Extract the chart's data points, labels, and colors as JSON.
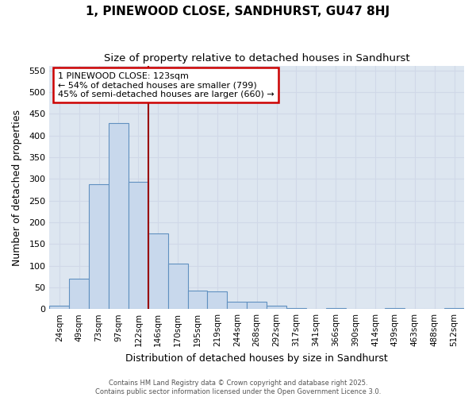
{
  "title": "1, PINEWOOD CLOSE, SANDHURST, GU47 8HJ",
  "subtitle": "Size of property relative to detached houses in Sandhurst",
  "xlabel": "Distribution of detached houses by size in Sandhurst",
  "ylabel": "Number of detached properties",
  "categories": [
    "24sqm",
    "49sqm",
    "73sqm",
    "97sqm",
    "122sqm",
    "146sqm",
    "170sqm",
    "195sqm",
    "219sqm",
    "244sqm",
    "268sqm",
    "292sqm",
    "317sqm",
    "341sqm",
    "366sqm",
    "390sqm",
    "414sqm",
    "439sqm",
    "463sqm",
    "488sqm",
    "512sqm"
  ],
  "bar_values": [
    7,
    70,
    288,
    428,
    293,
    175,
    105,
    43,
    40,
    17,
    17,
    7,
    3,
    0,
    3,
    0,
    0,
    2,
    0,
    0,
    2
  ],
  "bar_color": "#c8d8ec",
  "bar_edge_color": "#6090c0",
  "grid_color": "#d0d8e8",
  "bg_color": "#dde6f0",
  "fig_bg_color": "#ffffff",
  "vline_color": "#990000",
  "annotation_text": "1 PINEWOOD CLOSE: 123sqm\n← 54% of detached houses are smaller (799)\n45% of semi-detached houses are larger (660) →",
  "annotation_box_color": "#cc0000",
  "ylim": [
    0,
    560
  ],
  "yticks": [
    0,
    50,
    100,
    150,
    200,
    250,
    300,
    350,
    400,
    450,
    500,
    550
  ],
  "footer_line1": "Contains HM Land Registry data © Crown copyright and database right 2025.",
  "footer_line2": "Contains public sector information licensed under the Open Government Licence 3.0."
}
